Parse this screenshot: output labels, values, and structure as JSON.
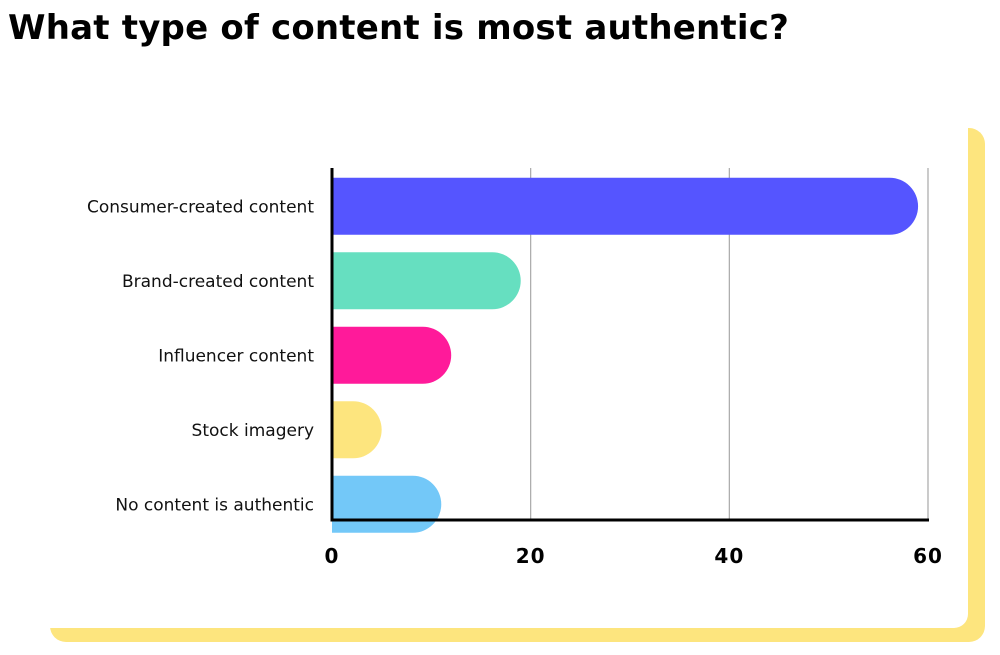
{
  "chart_data": {
    "type": "bar",
    "orientation": "horizontal",
    "title": "What type of content is most authentic?",
    "categories": [
      "Consumer-created content",
      "Brand-created content",
      "Influencer content",
      "Stock imagery",
      "No content is authentic"
    ],
    "values": [
      59,
      19,
      12,
      5,
      11
    ],
    "colors": [
      "#5555ff",
      "#66dfc0",
      "#ff1a9a",
      "#fde57e",
      "#73c8f8"
    ],
    "xlim": [
      0,
      60
    ],
    "xticks": [
      "0",
      "20",
      "40",
      "60"
    ],
    "grid": true,
    "xlabel": "",
    "ylabel": ""
  },
  "theme": {
    "card_shadow_color": "#fde57e",
    "gridline_color": "#a8a8a8",
    "axis_color": "#000000"
  }
}
